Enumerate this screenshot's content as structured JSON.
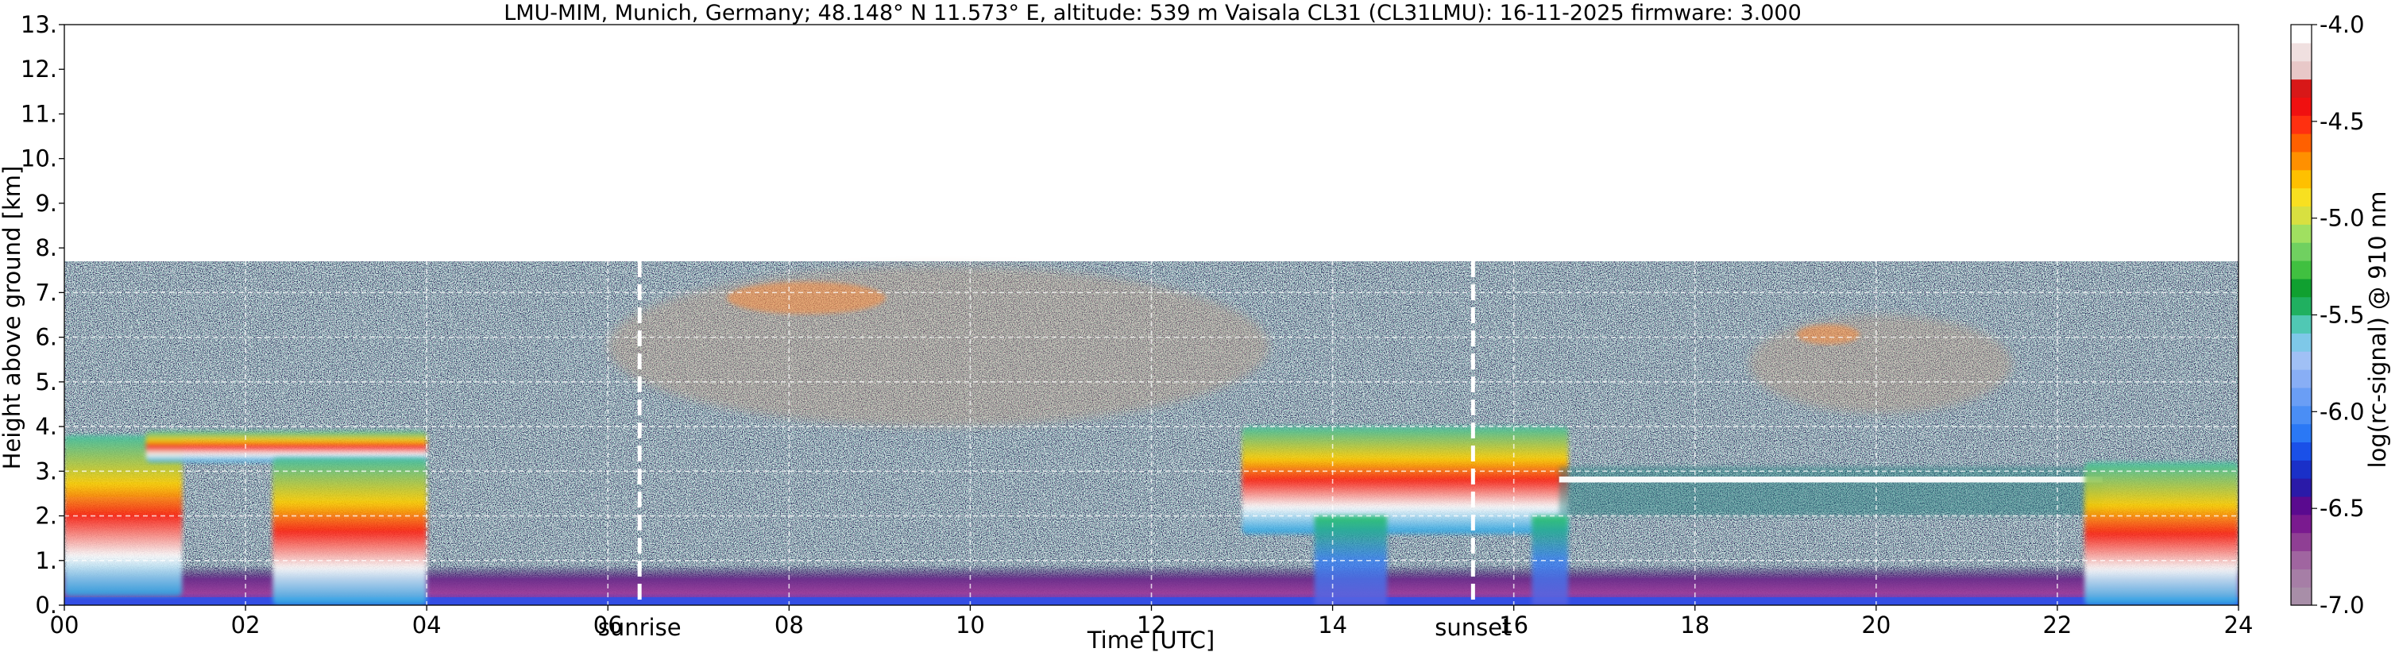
{
  "chart_data": {
    "type": "heatmap",
    "title": "LMU-MIM, Munich, Germany; 48.148° N 11.573° E, altitude: 539 m    Vaisala CL31 (CL31LMU): 16-11-2025    firmware: 3.000",
    "xlabel": "Time [UTC]",
    "ylabel": "Height above ground [km]",
    "xlim": [
      0,
      24
    ],
    "ylim": [
      0,
      13
    ],
    "x_ticks": [
      "00",
      "02",
      "04",
      "06",
      "08",
      "10",
      "12",
      "14",
      "16",
      "18",
      "20",
      "22",
      "24"
    ],
    "y_ticks": [
      "0.",
      "1.",
      "2.",
      "3.",
      "4.",
      "5.",
      "6.",
      "7.",
      "8.",
      "9.",
      "10.",
      "11.",
      "12.",
      "13."
    ],
    "grid": true,
    "max_range_km": 7.7,
    "annotations": [
      {
        "label": "sunrise",
        "x": 6.35
      },
      {
        "label": "sunset",
        "x": 15.55
      }
    ],
    "colorbar": {
      "label": "log(rc-signal) @ 910 nm",
      "range": [
        -7.0,
        -4.0
      ],
      "ticks": [
        "-4.0",
        "-4.5",
        "-5.0",
        "-5.5",
        "-6.0",
        "-6.5",
        "-7.0"
      ],
      "colors_bottom_to_top": [
        "#a88ea8",
        "#a67ea6",
        "#a065a0",
        "#8f3f94",
        "#7a1a8f",
        "#5a0a8f",
        "#2a1aa8",
        "#1a30c8",
        "#1a50e8",
        "#2a78f5",
        "#4a8ef5",
        "#6a9ef5",
        "#88aef5",
        "#a0c0f5",
        "#7ec8e8",
        "#50c8b4",
        "#20b060",
        "#10a030",
        "#40c040",
        "#70d060",
        "#a0e060",
        "#d8e040",
        "#f8e020",
        "#ffc000",
        "#ff9000",
        "#ff6000",
        "#ff3010",
        "#f01010",
        "#d81818",
        "#e8c8c8",
        "#f0e0e0",
        "#ffffff"
      ]
    },
    "features": [
      {
        "kind": "surface_aerosol_layer",
        "x": [
          0,
          24
        ],
        "height_km": [
          0,
          0.9
        ]
      },
      {
        "kind": "cloud",
        "x": [
          0,
          1.3
        ],
        "height_km": [
          0.2,
          3.8
        ]
      },
      {
        "kind": "cloud",
        "x": [
          0.9,
          4.0
        ],
        "height_km": [
          3.2,
          3.9
        ]
      },
      {
        "kind": "cloud",
        "x": [
          2.3,
          4.0
        ],
        "height_km": [
          0.0,
          3.3
        ]
      },
      {
        "kind": "cirrus",
        "x": [
          6.0,
          13.3
        ],
        "height_km": [
          4.0,
          7.6
        ]
      },
      {
        "kind": "cloud",
        "x": [
          13.0,
          16.6
        ],
        "height_km": [
          1.6,
          4.0
        ]
      },
      {
        "kind": "precipitation_fallstreak",
        "x": [
          13.8,
          14.6
        ],
        "height_km": [
          0.0,
          2.0
        ]
      },
      {
        "kind": "precipitation_fallstreak",
        "x": [
          16.2,
          16.6
        ],
        "height_km": [
          0.0,
          2.0
        ]
      },
      {
        "kind": "cloud_layer",
        "x": [
          16.5,
          22.5
        ],
        "height_km": [
          2.0,
          3.1
        ]
      },
      {
        "kind": "cirrus",
        "x": [
          18.6,
          21.5
        ],
        "height_km": [
          4.3,
          6.5
        ]
      },
      {
        "kind": "cloud",
        "x": [
          22.3,
          24
        ],
        "height_km": [
          0.0,
          3.2
        ]
      }
    ]
  }
}
